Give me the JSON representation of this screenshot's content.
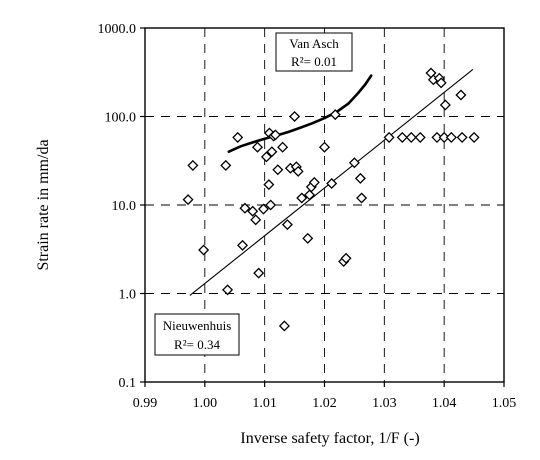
{
  "chart_data": {
    "type": "scatter",
    "title": "",
    "xlabel": "Inverse safety factor, 1/F (-)",
    "ylabel": "Strain rate in mm/da",
    "xlim": [
      0.99,
      1.05
    ],
    "ylim": [
      0.1,
      1000
    ],
    "yscale": "log",
    "grid": "dashed",
    "x_ticks": [
      "0.99",
      "1.00",
      "1.01",
      "1.02",
      "1.03",
      "1.04",
      "1.05"
    ],
    "y_ticks": [
      "0.1",
      "1.0",
      "10.0",
      "100.0",
      "1000.0"
    ],
    "series": [
      {
        "marker": "diamond",
        "points": [
          [
            0.9972,
            11.5
          ],
          [
            0.998,
            28
          ],
          [
            0.9998,
            3.1
          ],
          [
            1.0035,
            28
          ],
          [
            1.0038,
            1.1
          ],
          [
            1.0055,
            58
          ],
          [
            1.0063,
            3.5
          ],
          [
            1.0067,
            9.2
          ],
          [
            1.008,
            8.5
          ],
          [
            1.0085,
            6.8
          ],
          [
            1.0088,
            45
          ],
          [
            1.009,
            1.7
          ],
          [
            1.0098,
            9
          ],
          [
            1.0103,
            35
          ],
          [
            1.0107,
            17
          ],
          [
            1.011,
            10
          ],
          [
            1.0108,
            65
          ],
          [
            1.0112,
            40
          ],
          [
            1.0115,
            60
          ],
          [
            1.0118,
            62
          ],
          [
            1.0122,
            25
          ],
          [
            1.013,
            45
          ],
          [
            1.0133,
            0.43
          ],
          [
            1.0138,
            6
          ],
          [
            1.0143,
            26
          ],
          [
            1.015,
            100
          ],
          [
            1.0153,
            27
          ],
          [
            1.0156,
            24
          ],
          [
            1.0162,
            12
          ],
          [
            1.0172,
            4.2
          ],
          [
            1.0175,
            13
          ],
          [
            1.0178,
            16
          ],
          [
            1.0183,
            18
          ],
          [
            1.02,
            45
          ],
          [
            1.0212,
            17.5
          ],
          [
            1.0218,
            105
          ],
          [
            1.0232,
            2.3
          ],
          [
            1.0236,
            2.5
          ],
          [
            1.025,
            30
          ],
          [
            1.026,
            20
          ],
          [
            1.0262,
            12
          ],
          [
            1.0308,
            58
          ],
          [
            1.033,
            58
          ],
          [
            1.0345,
            58
          ],
          [
            1.036,
            58
          ],
          [
            1.0378,
            310
          ],
          [
            1.0382,
            260
          ],
          [
            1.0388,
            58
          ],
          [
            1.0392,
            270
          ],
          [
            1.0395,
            240
          ],
          [
            1.04,
            58
          ],
          [
            1.0402,
            135
          ],
          [
            1.0412,
            58
          ],
          [
            1.0428,
            175
          ],
          [
            1.043,
            58
          ],
          [
            1.045,
            58
          ]
        ]
      },
      {
        "type": "line",
        "fit": "exponential",
        "x": [
          0.9975,
          1.0448
        ],
        "y": [
          0.95,
          340
        ]
      },
      {
        "type": "line",
        "style": "thick-curve",
        "x": [
          1.004,
          1.006,
          1.008,
          1.01,
          1.012,
          1.014,
          1.016,
          1.018,
          1.02,
          1.022,
          1.024,
          1.0255,
          1.0268,
          1.0278
        ],
        "y": [
          40,
          46,
          51,
          56,
          61,
          67,
          75,
          84,
          96,
          112,
          140,
          180,
          230,
          290
        ]
      }
    ],
    "annotations": [
      {
        "title": "Van Asch",
        "r2": "R²= 0.01"
      },
      {
        "title": "Nieuwenhuis",
        "r2": "R²= 0.34"
      }
    ]
  }
}
